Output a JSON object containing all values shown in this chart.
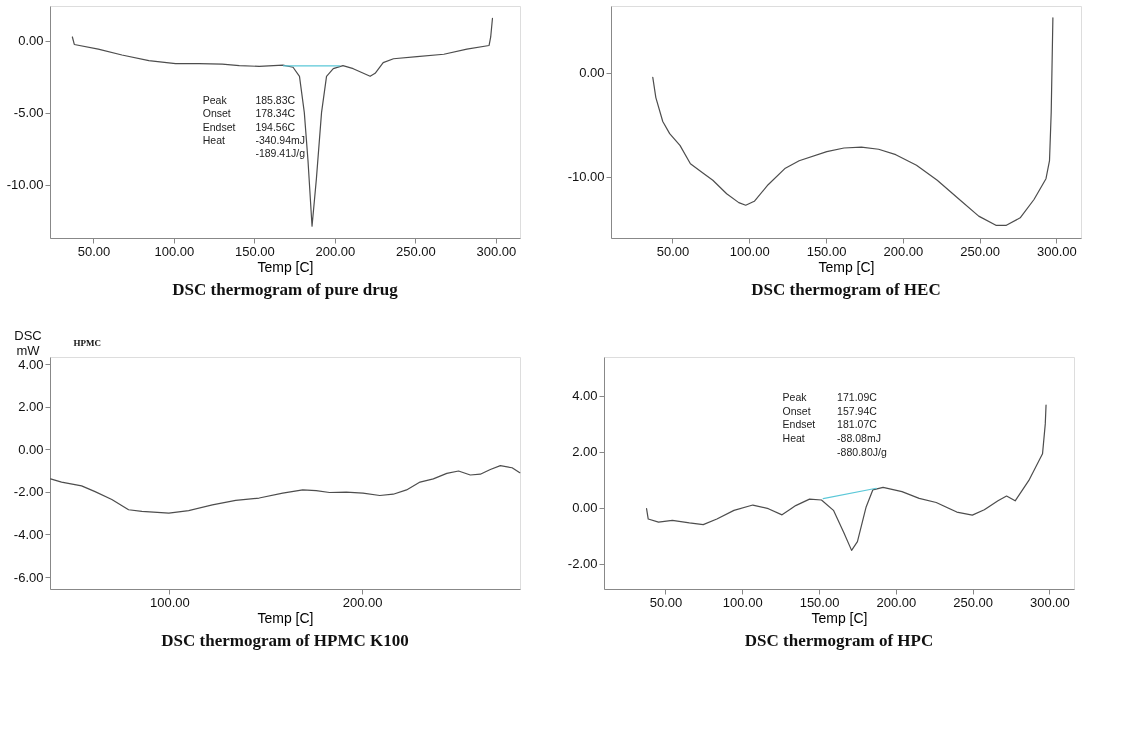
{
  "chart_data": [
    {
      "type": "line",
      "title": "DSC thermogram of pure drug",
      "xlabel": "Temp [C]",
      "xlim": [
        23,
        315
      ],
      "ylim": [
        -13.7,
        2.4
      ],
      "xticks": [
        {
          "value": 50,
          "label": "50.00"
        },
        {
          "value": 100,
          "label": "100.00"
        },
        {
          "value": 150,
          "label": "150.00"
        },
        {
          "value": 200,
          "label": "200.00"
        },
        {
          "value": 250,
          "label": "250.00"
        },
        {
          "value": 300,
          "label": "300.00"
        }
      ],
      "yticks": [
        {
          "value": 0,
          "label": "0.00"
        },
        {
          "value": -5,
          "label": "-5.00"
        },
        {
          "value": -10,
          "label": "-10.00"
        }
      ],
      "annotations": [
        "Peak 185.83C",
        "Onset 178.34C",
        "Endset 194.56C",
        "Heat -340.94mJ",
        "-189.41J/g"
      ],
      "series": [
        {
          "color": "#4d4d4d",
          "x": [
            36.9,
            38.1,
            53,
            67.7,
            84.4,
            101,
            115.6,
            130,
            140.6,
            153,
            167.7,
            174,
            178,
            181,
            183.3,
            185.8,
            188.5,
            191.7,
            194.8,
            199,
            205,
            211.4,
            217.7,
            221.9,
            225,
            230,
            236.4,
            251,
            267.7,
            282,
            295.8,
            296.8,
            297.9
          ],
          "values": [
            0.25,
            -0.27,
            -0.59,
            -1.0,
            -1.39,
            -1.6,
            -1.6,
            -1.64,
            -1.74,
            -1.79,
            -1.7,
            -1.85,
            -2.48,
            -5.0,
            -8.36,
            -12.88,
            -9.6,
            -5.0,
            -2.48,
            -1.95,
            -1.74,
            -1.95,
            -2.27,
            -2.48,
            -2.27,
            -1.53,
            -1.26,
            -1.11,
            -0.95,
            -0.59,
            -0.34,
            0.25,
            1.55
          ]
        },
        {
          "color": "#5bc8d8",
          "x": [
            168,
            203
          ],
          "values": [
            -1.75,
            -1.75
          ]
        }
      ]
    },
    {
      "type": "line",
      "title": "DSC thermogram of HEC",
      "xlabel": "Temp [C]",
      "xlim": [
        10,
        316
      ],
      "ylim": [
        -15.9,
        6.4
      ],
      "xticks": [
        {
          "value": 50,
          "label": "50.00"
        },
        {
          "value": 100,
          "label": "100.00"
        },
        {
          "value": 150,
          "label": "150.00"
        },
        {
          "value": 200,
          "label": "200.00"
        },
        {
          "value": 250,
          "label": "250.00"
        },
        {
          "value": 300,
          "label": "300.00"
        }
      ],
      "yticks": [
        {
          "value": 0,
          "label": "0.00"
        },
        {
          "value": -10,
          "label": "-10.00"
        }
      ],
      "series": [
        {
          "color": "#4d4d4d",
          "x": [
            37.2,
            39.2,
            43.7,
            48.2,
            54.9,
            61.7,
            69.6,
            76.3,
            85.3,
            93.2,
            97.7,
            103.3,
            112.3,
            123.5,
            132.5,
            150.5,
            161.7,
            173,
            184.2,
            195.4,
            208.9,
            222.4,
            235.9,
            249.4,
            260.6,
            267.4,
            276.4,
            285.4,
            293.2,
            295.5,
            296.6,
            297.7
          ],
          "values": [
            -0.46,
            -2.4,
            -4.7,
            -5.87,
            -7.0,
            -8.76,
            -9.62,
            -10.35,
            -11.65,
            -12.5,
            -12.75,
            -12.37,
            -10.78,
            -9.19,
            -8.47,
            -7.6,
            -7.25,
            -7.17,
            -7.37,
            -7.89,
            -8.9,
            -10.35,
            -12.08,
            -13.8,
            -14.68,
            -14.68,
            -13.96,
            -12.2,
            -10.2,
            -8.47,
            -3.84,
            5.26
          ]
        }
      ]
    },
    {
      "type": "line",
      "title": "DSC thermogram of HPMC K100",
      "xlabel": "Temp [C]",
      "ylabel": "DSC mW",
      "xlim": [
        38,
        282
      ],
      "ylim": [
        -6.56,
        4.33
      ],
      "xticks": [
        {
          "value": 100,
          "label": "100.00"
        },
        {
          "value": 200,
          "label": "200.00"
        }
      ],
      "yticks": [
        {
          "value": 4,
          "label": "4.00"
        },
        {
          "value": 2,
          "label": "2.00"
        },
        {
          "value": 0,
          "label": "0.00"
        },
        {
          "value": -2,
          "label": "-2.00"
        },
        {
          "value": -4,
          "label": "-4.00"
        },
        {
          "value": -6,
          "label": "-6.00"
        }
      ],
      "annotations": [
        "HPMC"
      ],
      "series": [
        {
          "color": "#4d4d4d",
          "x": [
            38.3,
            44,
            54.4,
            61.4,
            70.1,
            78.8,
            85.7,
            99.7,
            110,
            122.3,
            134.4,
            146.6,
            158.8,
            169.2,
            176.2,
            183.1,
            191.8,
            200.5,
            209.2,
            216.2,
            223.1,
            230.1,
            237,
            244,
            250.1,
            256.2,
            261.4,
            266.6,
            271.8,
            277.9,
            281.9
          ],
          "values": [
            -1.39,
            -1.54,
            -1.72,
            -1.99,
            -2.36,
            -2.84,
            -2.92,
            -3.0,
            -2.88,
            -2.61,
            -2.4,
            -2.29,
            -2.06,
            -1.91,
            -1.94,
            -2.03,
            -2.01,
            -2.06,
            -2.17,
            -2.11,
            -1.91,
            -1.54,
            -1.39,
            -1.13,
            -1.02,
            -1.21,
            -1.17,
            -0.95,
            -0.77,
            -0.87,
            -1.1
          ]
        }
      ]
    },
    {
      "type": "line",
      "title": "DSC thermogram of HPC",
      "xlabel": "Temp [C]",
      "xlim": [
        10,
        316
      ],
      "ylim": [
        -2.9,
        5.39
      ],
      "xticks": [
        {
          "value": 50,
          "label": "50.00"
        },
        {
          "value": 100,
          "label": "100.00"
        },
        {
          "value": 150,
          "label": "150.00"
        },
        {
          "value": 200,
          "label": "200.00"
        },
        {
          "value": 250,
          "label": "250.00"
        },
        {
          "value": 300,
          "label": "300.00"
        }
      ],
      "yticks": [
        {
          "value": 4,
          "label": "4.00"
        },
        {
          "value": 2,
          "label": "2.00"
        },
        {
          "value": 0,
          "label": "0.00"
        },
        {
          "value": -2,
          "label": "-2.00"
        }
      ],
      "annotations": [
        "Peak 171.09C",
        "Onset 157.94C",
        "Endset 181.07C",
        "Heat -88.08mJ",
        "-880.80J/g"
      ],
      "series": [
        {
          "color": "#4d4d4d",
          "x": [
            37.7,
            38.8,
            45.5,
            54.5,
            65.6,
            74.6,
            83.5,
            94.6,
            106.9,
            117,
            125.9,
            134.8,
            143.8,
            151.6,
            159.4,
            166.1,
            171.2,
            175,
            180.6,
            185,
            191.7,
            204,
            215.2,
            226.3,
            239.7,
            249.8,
            257.6,
            266.5,
            272.1,
            277.7,
            286.6,
            295.5,
            297.3,
            297.8
          ],
          "values": [
            -0.03,
            -0.4,
            -0.51,
            -0.45,
            -0.54,
            -0.6,
            -0.4,
            -0.09,
            0.1,
            -0.03,
            -0.25,
            0.08,
            0.31,
            0.28,
            -0.09,
            -0.88,
            -1.52,
            -1.21,
            0.02,
            0.64,
            0.73,
            0.58,
            0.34,
            0.19,
            -0.15,
            -0.26,
            -0.07,
            0.25,
            0.42,
            0.25,
            0.98,
            1.93,
            3.0,
            3.67
          ]
        },
        {
          "color": "#5bc8d8",
          "x": [
            152.7,
            187.3
          ],
          "values": [
            0.33,
            0.7
          ]
        }
      ]
    }
  ]
}
